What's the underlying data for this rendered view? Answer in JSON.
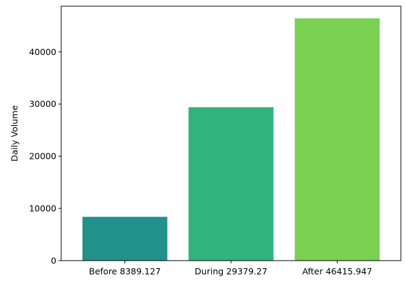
{
  "chart_data": {
    "type": "bar",
    "title": "",
    "xlabel": "",
    "ylabel": "Daily Volume",
    "categories": [
      "Before 8389.127",
      "During 29379.27",
      "After 46415.947"
    ],
    "values": [
      8389.127,
      29379.27,
      46415.947
    ],
    "colors": [
      "#21918c",
      "#2fb47c",
      "#7ad151"
    ],
    "ylim": [
      0,
      48737
    ],
    "yticks": [
      0,
      10000,
      20000,
      30000,
      40000
    ],
    "ytick_labels": [
      "0",
      "10000",
      "20000",
      "30000",
      "40000"
    ],
    "grid": false,
    "legend": "none"
  }
}
